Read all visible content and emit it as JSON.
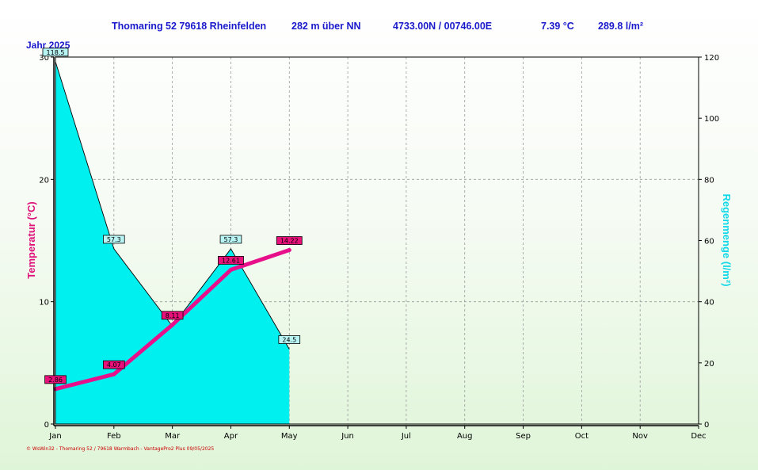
{
  "header": {
    "location": "Thomaring 52 79618 Rheinfelden",
    "altitude": "282 m über NN",
    "coords": "4733.00N / 00746.00E",
    "avg_temp": "7.39 °C",
    "rain_total": "289.8 l/m²"
  },
  "year_label": "Jahr 2025",
  "footer": "© WsWin32 - Thomaring 52 / 79618 Warmbach - VantagePro2 Plus  09/05/2025",
  "colors": {
    "rain_fill": "#00f0f0",
    "temp_line": "#e8108a",
    "header_text": "#1a1acc",
    "left_axis_title": "#e0107a",
    "right_axis_title": "#10d8e8",
    "rain_label_bg": "#b8f4f4",
    "temp_label_bg": "#e8107a"
  },
  "chart_data": {
    "type": "line",
    "categories": [
      "Jan",
      "Feb",
      "Mar",
      "Apr",
      "May",
      "Jun",
      "Jul",
      "Aug",
      "Sep",
      "Oct",
      "Nov",
      "Dec"
    ],
    "left_axis": {
      "title": "Temperatur  (°C)",
      "range": [
        0,
        30
      ],
      "ticks": [
        "0",
        "10",
        "20",
        "30"
      ]
    },
    "right_axis": {
      "title": "Regenmenge  (l/m²)",
      "range": [
        0,
        120
      ],
      "ticks": [
        "0",
        "20",
        "40",
        "60",
        "80",
        "100",
        "120"
      ]
    },
    "grid": true,
    "series": [
      {
        "kind": "area",
        "axis": "right",
        "x": [
          0,
          1,
          2,
          3,
          4
        ],
        "values": [
          118.5,
          57.3,
          32.0,
          57.3,
          24.5
        ],
        "labels": [
          "118.5",
          "57.3",
          "",
          "57.3",
          "24.5"
        ]
      },
      {
        "kind": "line",
        "axis": "left",
        "x": [
          0,
          1,
          2,
          3,
          4
        ],
        "values": [
          2.86,
          4.07,
          8.11,
          12.61,
          14.22
        ],
        "labels": [
          "2.86",
          "4.07",
          "8.11",
          "12.61",
          "14.22"
        ]
      }
    ]
  }
}
